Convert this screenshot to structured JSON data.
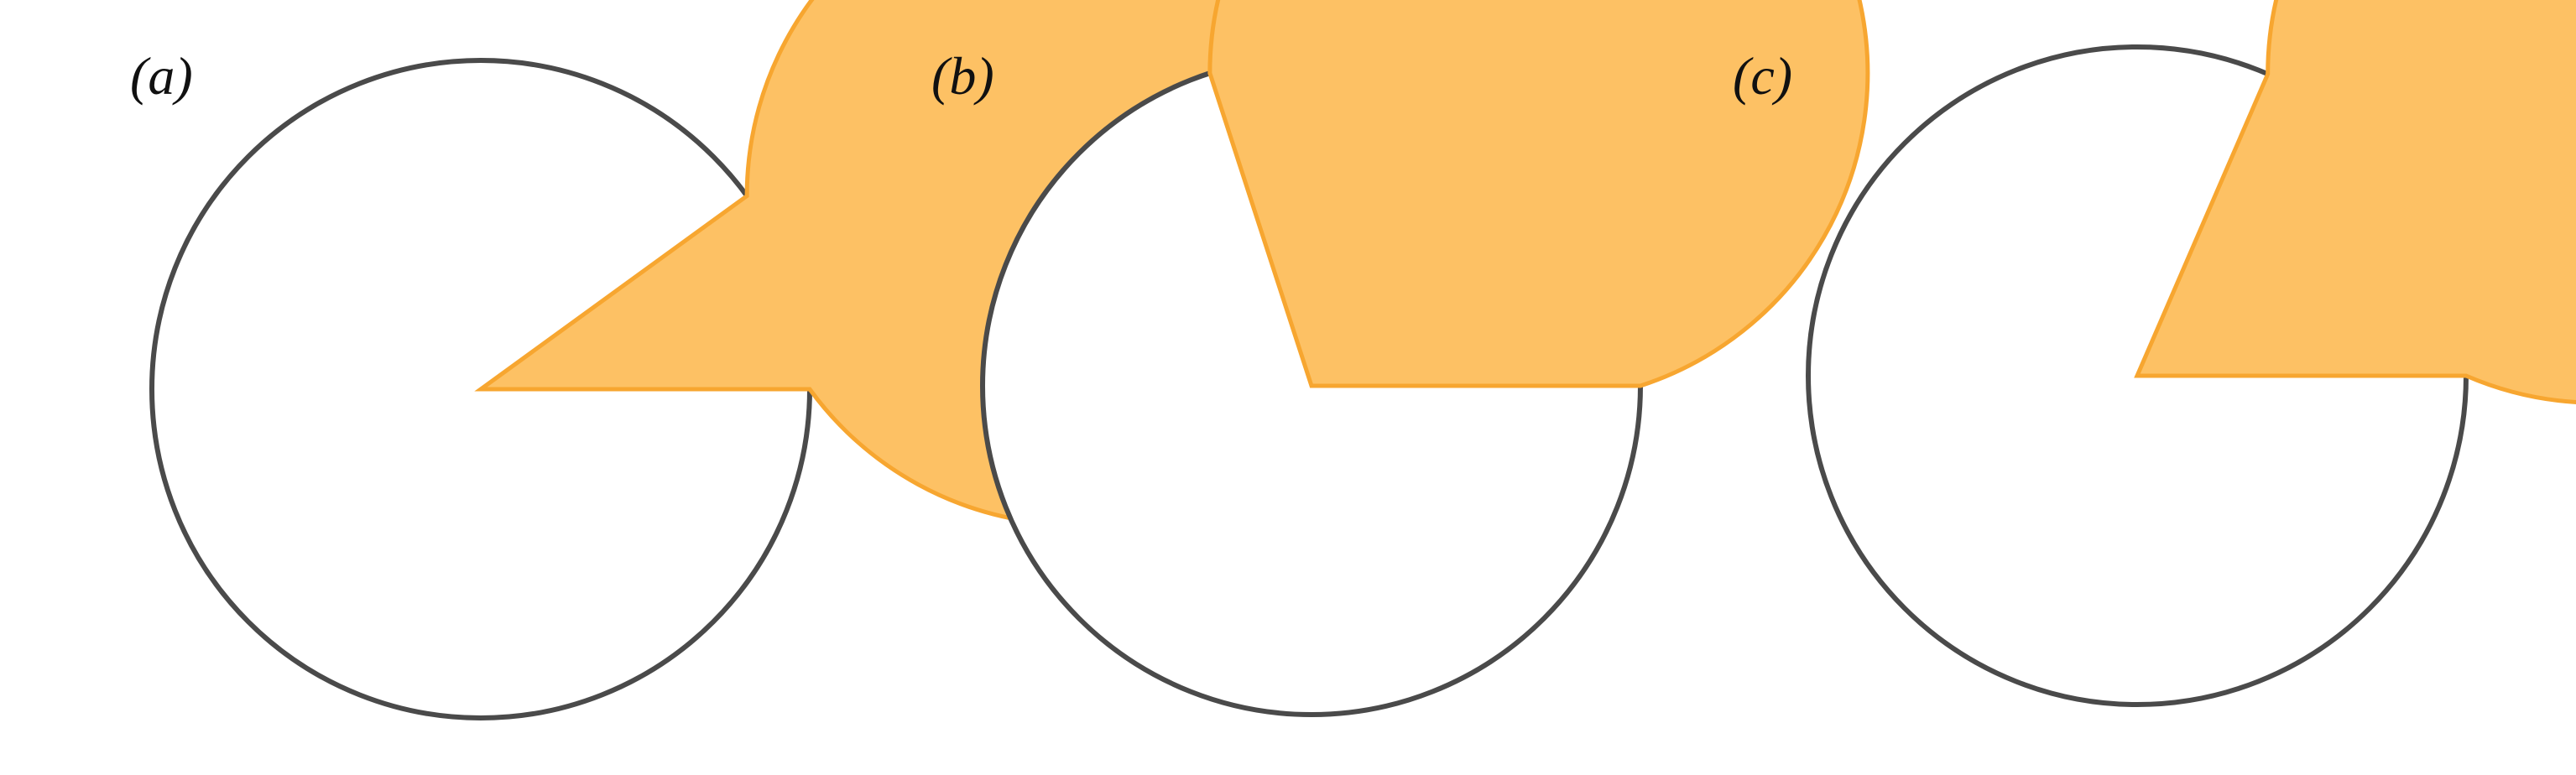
{
  "diagram": {
    "colors": {
      "fill": "#FDC164",
      "fill_edge": "#F7A630",
      "outline": "#4A4A4A",
      "background": "#FFFFFF"
    },
    "panels": [
      {
        "label": "(a)",
        "filled_fraction": 0.9
      },
      {
        "label": "(b)",
        "filled_fraction": 0.7
      },
      {
        "label": "(c)",
        "filled_fraction": 0.815
      }
    ]
  }
}
